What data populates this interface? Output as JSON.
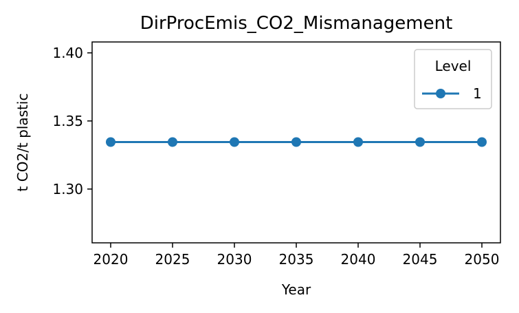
{
  "chart_data": {
    "type": "line",
    "title": "DirProcEmis_CO2_Mismanagement",
    "xlabel": "Year",
    "ylabel": "t CO2/t plastic",
    "x": [
      2020,
      2025,
      2030,
      2035,
      2040,
      2045,
      2050
    ],
    "xticks": [
      "2020",
      "2025",
      "2030",
      "2035",
      "2040",
      "2045",
      "2050"
    ],
    "yticks": [
      "1.30",
      "1.35",
      "1.40"
    ],
    "ytick_values": [
      1.3,
      1.35,
      1.4
    ],
    "xlim": [
      2018.5,
      2051.5
    ],
    "ylim": [
      1.2605,
      1.408
    ],
    "grid": false,
    "legend": {
      "title": "Level",
      "position": "top-right"
    },
    "series": [
      {
        "name": "1",
        "color": "#1f77b4",
        "marker": "circle",
        "values": [
          1.3345,
          1.3345,
          1.3345,
          1.3345,
          1.3345,
          1.3345,
          1.3345
        ]
      }
    ]
  }
}
